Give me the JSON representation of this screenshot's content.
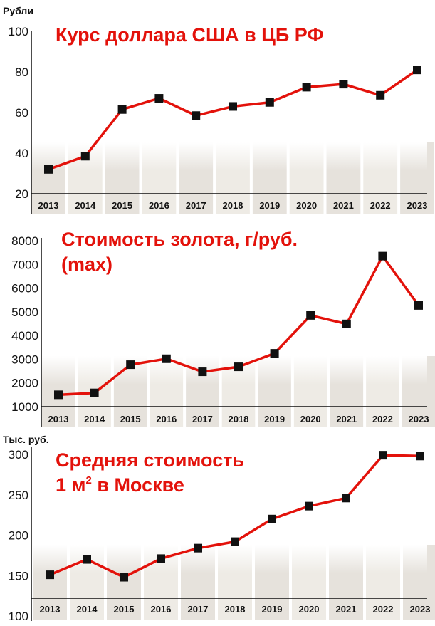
{
  "colors": {
    "line": "#e3120b",
    "marker": "#111111",
    "band_dark": "#e2ddd6",
    "band_light": "#ffffff",
    "title": "#e3120b"
  },
  "chart_data": [
    {
      "type": "line",
      "title": "Курс доллара США в ЦБ РФ",
      "ylabel": "Рубли",
      "x": [
        "2013",
        "2014",
        "2015",
        "2016",
        "2017",
        "2018",
        "2019",
        "2020",
        "2021",
        "2022",
        "2023"
      ],
      "values": [
        32,
        38.5,
        61.5,
        67,
        58.5,
        63,
        65,
        72.5,
        74,
        68.5,
        81
      ],
      "ylim": [
        20,
        100
      ],
      "yticks": [
        "20",
        "40",
        "60",
        "80",
        "100"
      ]
    },
    {
      "type": "line",
      "title": "Стоимость золота, г/руб. (max)",
      "title_lines": [
        "Стоимость золота, г/руб.",
        "(max)"
      ],
      "ylabel": "",
      "x": [
        "2013",
        "2014",
        "2015",
        "2016",
        "2017",
        "2018",
        "2019",
        "2020",
        "2021",
        "2022",
        "2023"
      ],
      "values": [
        1500,
        1580,
        2770,
        3020,
        2470,
        2680,
        3250,
        4850,
        4490,
        7350,
        5270
      ],
      "ylim": [
        1000,
        8000
      ],
      "yticks": [
        "1000",
        "2000",
        "3000",
        "4000",
        "5000",
        "6000",
        "7000",
        "8000"
      ]
    },
    {
      "type": "line",
      "title": "Средняя стоимость 1 м2 в Москве",
      "title_lines": [
        "Средняя стоимость",
        "1 м",
        "2",
        " в Москве"
      ],
      "ylabel": "Тыс. руб.",
      "x": [
        "2013",
        "2014",
        "2015",
        "2016",
        "2017",
        "2018",
        "2019",
        "2020",
        "2021",
        "2022",
        "2023"
      ],
      "values": [
        151,
        170,
        148,
        171,
        184,
        192,
        220,
        236,
        246,
        299,
        298
      ],
      "ylim": [
        100,
        300
      ],
      "yticks": [
        "100",
        "150",
        "200",
        "250",
        "300"
      ]
    }
  ]
}
